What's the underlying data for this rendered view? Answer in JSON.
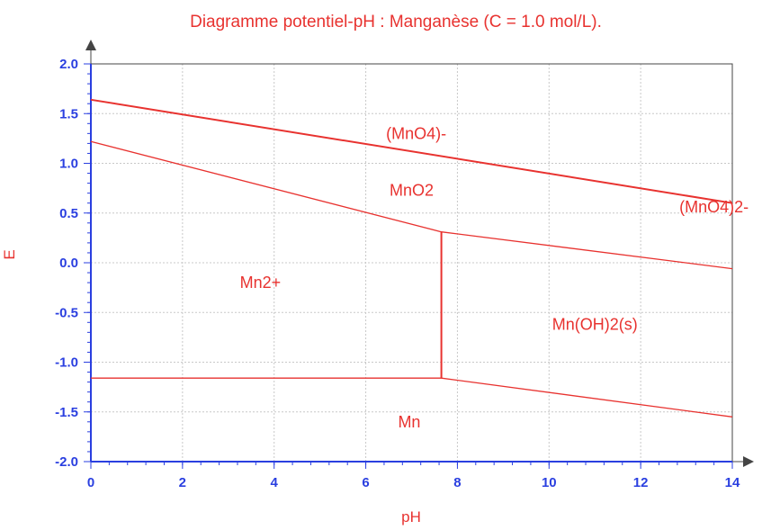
{
  "chart_data": {
    "type": "line",
    "title": "Diagramme potentiel-pH : Manganèse (C = 1.0 mol/L).",
    "xlabel": "pH",
    "ylabel": "E",
    "xlim": [
      0,
      14
    ],
    "ylim": [
      -2.0,
      2.0
    ],
    "x_ticks": [
      "0",
      "2",
      "4",
      "6",
      "8",
      "10",
      "12",
      "14"
    ],
    "y_ticks": [
      "2.0",
      "1.5",
      "1.0",
      "0.5",
      "0.0",
      "-0.5",
      "-1.0",
      "-1.5",
      "-2.0"
    ],
    "grid": true,
    "colors": {
      "lines": "#e8322f",
      "ticks": "#2a3fe0",
      "grid": "#c8c8c8"
    },
    "series": [
      {
        "points": [
          [
            0,
            1.64
          ],
          [
            14,
            0.6
          ]
        ],
        "width": "thick"
      },
      {
        "points": [
          [
            0,
            1.22
          ],
          [
            7.65,
            0.31
          ],
          [
            14,
            -0.06
          ]
        ],
        "width": "thin"
      },
      {
        "points": [
          [
            0,
            -1.16
          ],
          [
            7.65,
            -1.16
          ],
          [
            14,
            -1.55
          ]
        ],
        "width": "thin"
      },
      {
        "points": [
          [
            7.65,
            -1.16
          ],
          [
            7.65,
            0.31
          ]
        ],
        "width": "thick"
      }
    ],
    "regions": [
      {
        "label": "(MnO4)-",
        "x": 7.1,
        "y": 1.3
      },
      {
        "label": "MnO2",
        "x": 7.0,
        "y": 0.73
      },
      {
        "label": "(MnO4)2-",
        "x": 13.6,
        "y": 0.56
      },
      {
        "label": "Mn2+",
        "x": 3.7,
        "y": -0.2
      },
      {
        "label": "Mn(OH)2(s)",
        "x": 11.0,
        "y": -0.62
      },
      {
        "label": "Mn",
        "x": 6.95,
        "y": -1.6
      }
    ]
  }
}
